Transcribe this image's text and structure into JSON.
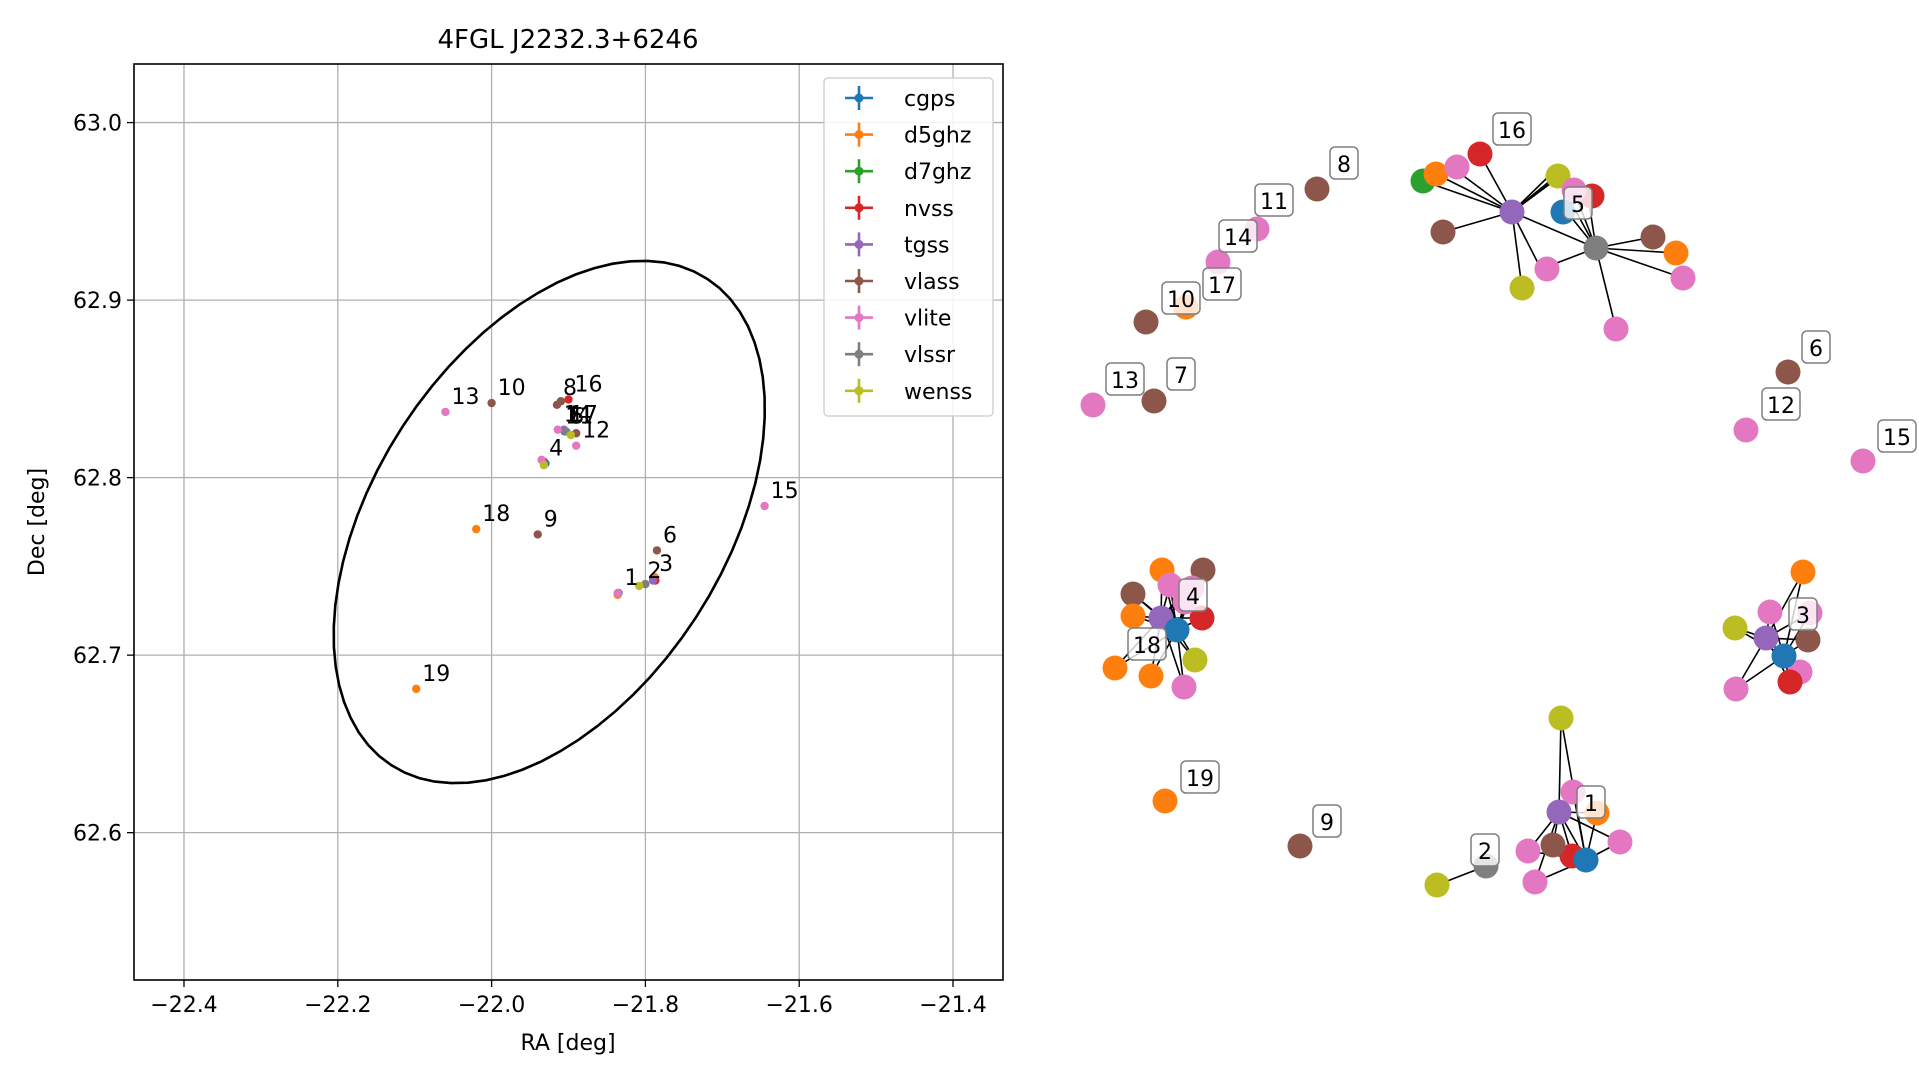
{
  "chart_data": [
    {
      "type": "scatter",
      "title": "4FGL J2232.3+6246",
      "xlabel": "RA [deg]",
      "ylabel": "Dec [deg]",
      "xlim": [
        -22.465,
        -21.335
      ],
      "ylim": [
        62.517,
        63.033
      ],
      "xticks": [
        -22.4,
        -22.2,
        -22.0,
        -21.8,
        -21.6,
        -21.4
      ],
      "xtick_labels": [
        "−22.4",
        "−22.2",
        "−22.0",
        "−21.8",
        "−21.6",
        "−21.4"
      ],
      "yticks": [
        62.6,
        62.7,
        62.8,
        62.9,
        63.0
      ],
      "ytick_labels": [
        "62.6",
        "62.7",
        "62.8",
        "62.9",
        "63.0"
      ],
      "grid": true,
      "legend_position": "top-right",
      "series": [
        {
          "name": "cgps",
          "color": "#1f77b4",
          "points": [
            [
              -21.835,
              62.735
            ],
            [
              -21.79,
              62.743
            ],
            [
              -21.93,
              62.808
            ],
            [
              -21.905,
              62.826
            ]
          ]
        },
        {
          "name": "d5ghz",
          "color": "#ff7f0e",
          "points": [
            [
              -22.098,
              62.681
            ],
            [
              -22.02,
              62.771
            ],
            [
              -21.836,
              62.734
            ],
            [
              -21.788,
              62.744
            ]
          ]
        },
        {
          "name": "d7ghz",
          "color": "#2ca02c",
          "points": [
            [
              -21.91,
              62.843
            ]
          ]
        },
        {
          "name": "nvss",
          "color": "#d62728",
          "points": [
            [
              -21.9,
              62.844
            ],
            [
              -21.787,
              62.742
            ],
            [
              -21.932,
              62.809
            ]
          ]
        },
        {
          "name": "tgss",
          "color": "#9467bd",
          "points": [
            [
              -21.906,
              62.827
            ],
            [
              -21.79,
              62.742
            ],
            [
              -21.932,
              62.808
            ]
          ]
        },
        {
          "name": "vlass",
          "color": "#8c564b",
          "points": [
            [
              -22.0,
              62.842
            ],
            [
              -21.94,
              62.768
            ],
            [
              -21.785,
              62.759
            ],
            [
              -21.91,
              62.843
            ],
            [
              -21.915,
              62.841
            ],
            [
              -21.89,
              62.825
            ]
          ]
        },
        {
          "name": "vlite",
          "color": "#e377c2",
          "points": [
            [
              -22.06,
              62.837
            ],
            [
              -21.645,
              62.784
            ],
            [
              -21.89,
              62.818
            ],
            [
              -21.935,
              62.81
            ],
            [
              -21.914,
              62.827
            ],
            [
              -21.836,
              62.735
            ]
          ]
        },
        {
          "name": "vlssr",
          "color": "#7f7f7f",
          "points": [
            [
              -21.903,
              62.826
            ],
            [
              -21.8,
              62.74
            ]
          ]
        },
        {
          "name": "wenss",
          "color": "#bcbd22",
          "points": [
            [
              -21.932,
              62.807
            ],
            [
              -21.808,
              62.739
            ],
            [
              -21.897,
              62.824
            ]
          ]
        }
      ],
      "labeled_points": [
        {
          "label": "1",
          "ra": -21.835,
          "dec": 62.735
        },
        {
          "label": "2",
          "ra": -21.805,
          "dec": 62.739
        },
        {
          "label": "3",
          "ra": -21.79,
          "dec": 62.743
        },
        {
          "label": "4",
          "ra": -21.933,
          "dec": 62.808
        },
        {
          "label": "5",
          "ra": -21.905,
          "dec": 62.826
        },
        {
          "label": "6",
          "ra": -21.785,
          "dec": 62.759
        },
        {
          "label": "7",
          "ra": -21.91,
          "dec": 62.826
        },
        {
          "label": "8",
          "ra": -21.915,
          "dec": 62.842
        },
        {
          "label": "9",
          "ra": -21.94,
          "dec": 62.768
        },
        {
          "label": "10",
          "ra": -22.0,
          "dec": 62.842
        },
        {
          "label": "11",
          "ra": -21.912,
          "dec": 62.826
        },
        {
          "label": "12",
          "ra": -21.89,
          "dec": 62.818
        },
        {
          "label": "13",
          "ra": -22.06,
          "dec": 62.837
        },
        {
          "label": "14",
          "ra": -21.914,
          "dec": 62.827
        },
        {
          "label": "15",
          "ra": -21.645,
          "dec": 62.784
        },
        {
          "label": "16",
          "ra": -21.9,
          "dec": 62.844
        },
        {
          "label": "17",
          "ra": -21.906,
          "dec": 62.827
        },
        {
          "label": "18",
          "ra": -22.02,
          "dec": 62.771
        },
        {
          "label": "19",
          "ra": -22.098,
          "dec": 62.681
        }
      ],
      "ellipse": {
        "center": [
          -21.925,
          62.775
        ],
        "ra_range": [
          -22.205,
          -21.595
        ],
        "dec_range": [
          62.625,
          62.925
        ],
        "color": "#000000"
      }
    },
    {
      "type": "network",
      "node_colors": {
        "cgps": "#1f77b4",
        "d5ghz": "#ff7f0e",
        "d7ghz": "#2ca02c",
        "nvss": "#d62728",
        "tgss": "#9467bd",
        "vlass": "#8c564b",
        "vlite": "#e377c2",
        "vlssr": "#7f7f7f",
        "wenss": "#bcbd22"
      },
      "clusters": [
        {
          "label": "16",
          "cat": [
            "vlass",
            "vlite",
            "nvss",
            "d7ghz",
            "d5ghz",
            "vlite",
            "nvss",
            "wenss",
            "vlite",
            "tgss",
            "cgps",
            "vlssr",
            "vlass",
            "d5ghz",
            "vlite",
            "wenss",
            "vlite",
            "vlite"
          ]
        },
        {
          "label": "5"
        },
        {
          "label": "4"
        },
        {
          "label": "18"
        },
        {
          "label": "3"
        },
        {
          "label": "1"
        },
        {
          "label": "2"
        }
      ],
      "isolated_labels": [
        "8",
        "11",
        "14",
        "17",
        "10",
        "13",
        "7",
        "6",
        "12",
        "15",
        "19",
        "9"
      ]
    }
  ]
}
